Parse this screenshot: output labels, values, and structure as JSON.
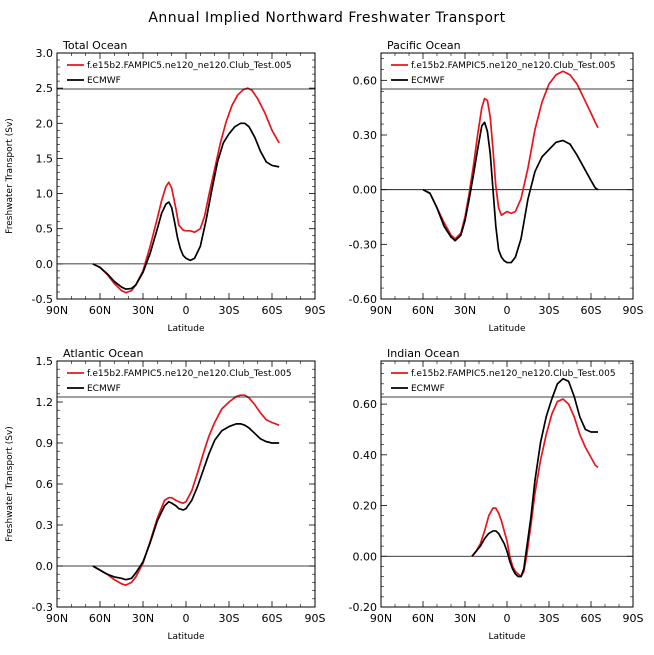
{
  "figure": {
    "title": "Annual Implied Northward Freshwater Transport"
  },
  "colors": {
    "model": "#e8141b",
    "obs": "#000000"
  },
  "chart_data": [
    {
      "type": "line",
      "title": "Total Ocean",
      "xlabel": "Latitude",
      "ylabel": "Freshwater Transport (Sv)",
      "xlim": [
        90,
        -90
      ],
      "ylim": [
        -0.5,
        3.0
      ],
      "xticks": [
        90,
        60,
        30,
        0,
        -30,
        -60,
        -90
      ],
      "xticklabels": [
        "90N",
        "60N",
        "30N",
        "0",
        "30S",
        "60S",
        "90S"
      ],
      "yticks": [
        -0.5,
        0,
        0.5,
        1,
        1.5,
        2,
        2.5,
        3
      ],
      "yticklabels": [
        "-0.5",
        "0.0",
        "0.5",
        "1.0",
        "1.5",
        "2.0",
        "2.5",
        "3.0"
      ],
      "zero_line": true,
      "legend": [
        "f.e15b2.FAMPIC5.ne120_ne120.Club_Test.005",
        "ECMWF"
      ],
      "series": [
        {
          "name": "f.e15b2.FAMPIC5.ne120_ne120.Club_Test.005",
          "color": "#e8141b",
          "x": [
            65,
            60,
            55,
            50,
            45,
            42,
            38,
            35,
            30,
            25,
            20,
            17,
            14,
            12,
            10,
            7,
            5,
            2,
            0,
            -3,
            -6,
            -10,
            -13,
            -16,
            -20,
            -24,
            -28,
            -32,
            -36,
            -40,
            -43,
            -46,
            -50,
            -55,
            -60,
            -65
          ],
          "y": [
            0,
            -0.05,
            -0.15,
            -0.28,
            -0.38,
            -0.41,
            -0.38,
            -0.3,
            -0.1,
            0.25,
            0.65,
            0.9,
            1.1,
            1.16,
            1.08,
            0.78,
            0.55,
            0.48,
            0.47,
            0.47,
            0.45,
            0.5,
            0.68,
            0.98,
            1.35,
            1.72,
            2.02,
            2.25,
            2.4,
            2.48,
            2.5,
            2.47,
            2.35,
            2.15,
            1.9,
            1.72
          ]
        },
        {
          "name": "ECMWF",
          "color": "#000000",
          "x": [
            65,
            60,
            55,
            50,
            45,
            42,
            38,
            35,
            30,
            25,
            20,
            17,
            14,
            12,
            10,
            8,
            6,
            4,
            2,
            0,
            -3,
            -6,
            -10,
            -14,
            -18,
            -22,
            -26,
            -30,
            -34,
            -38,
            -41,
            -44,
            -48,
            -52,
            -56,
            -60,
            -65
          ],
          "y": [
            0,
            -0.05,
            -0.14,
            -0.25,
            -0.33,
            -0.36,
            -0.35,
            -0.3,
            -0.12,
            0.15,
            0.5,
            0.72,
            0.85,
            0.88,
            0.8,
            0.6,
            0.38,
            0.22,
            0.12,
            0.08,
            0.05,
            0.08,
            0.25,
            0.62,
            1.05,
            1.45,
            1.72,
            1.85,
            1.95,
            2.0,
            2.0,
            1.95,
            1.8,
            1.6,
            1.45,
            1.4,
            1.38
          ]
        }
      ]
    },
    {
      "type": "line",
      "title": "Pacific Ocean",
      "xlabel": "Latitude",
      "ylabel": "",
      "xlim": [
        90,
        -90
      ],
      "ylim": [
        -0.6,
        0.75
      ],
      "xticks": [
        90,
        60,
        30,
        0,
        -30,
        -60,
        -90
      ],
      "xticklabels": [
        "90N",
        "60N",
        "30N",
        "0",
        "30S",
        "60S",
        "90S"
      ],
      "yticks": [
        -0.6,
        -0.3,
        0,
        0.3,
        0.6
      ],
      "yticklabels": [
        "-0.60",
        "-0.30",
        "0.00",
        "0.30",
        "0.60"
      ],
      "zero_line": true,
      "legend": [
        "f.e15b2.FAMPIC5.ne120_ne120.Club_Test.005",
        "ECMWF"
      ],
      "series": [
        {
          "name": "f.e15b2.FAMPIC5.ne120_ne120.Club_Test.005",
          "color": "#e8141b",
          "x": [
            60,
            55,
            50,
            45,
            40,
            37,
            33,
            30,
            27,
            24,
            21,
            18,
            16,
            14,
            12,
            10,
            8,
            6,
            4,
            2,
            0,
            -3,
            -6,
            -10,
            -15,
            -20,
            -25,
            -30,
            -35,
            -40,
            -45,
            -50,
            -55,
            -60,
            -63,
            -65
          ],
          "y": [
            0,
            -0.02,
            -0.1,
            -0.18,
            -0.25,
            -0.27,
            -0.24,
            -0.15,
            -0.02,
            0.13,
            0.3,
            0.45,
            0.5,
            0.49,
            0.4,
            0.22,
            0.02,
            -0.1,
            -0.14,
            -0.13,
            -0.12,
            -0.13,
            -0.12,
            -0.05,
            0.12,
            0.33,
            0.48,
            0.58,
            0.63,
            0.65,
            0.63,
            0.58,
            0.5,
            0.42,
            0.37,
            0.34
          ]
        },
        {
          "name": "ECMWF",
          "color": "#000000",
          "x": [
            60,
            55,
            50,
            45,
            40,
            37,
            33,
            30,
            27,
            24,
            21,
            18,
            16,
            14,
            12,
            10,
            8,
            6,
            4,
            2,
            0,
            -3,
            -6,
            -10,
            -15,
            -20,
            -25,
            -30,
            -35,
            -40,
            -45,
            -50,
            -55,
            -60,
            -63,
            -65
          ],
          "y": [
            0,
            -0.02,
            -0.1,
            -0.2,
            -0.26,
            -0.28,
            -0.25,
            -0.17,
            -0.05,
            0.08,
            0.22,
            0.35,
            0.37,
            0.32,
            0.2,
            0.0,
            -0.2,
            -0.33,
            -0.37,
            -0.39,
            -0.4,
            -0.4,
            -0.37,
            -0.27,
            -0.05,
            0.1,
            0.18,
            0.22,
            0.26,
            0.27,
            0.25,
            0.19,
            0.12,
            0.05,
            0.01,
            0.0
          ]
        }
      ]
    },
    {
      "type": "line",
      "title": "Atlantic Ocean",
      "xlabel": "Latitude",
      "ylabel": "Freshwater Transport (Sv)",
      "xlim": [
        90,
        -90
      ],
      "ylim": [
        -0.3,
        1.5
      ],
      "xticks": [
        90,
        60,
        30,
        0,
        -30,
        -60,
        -90
      ],
      "xticklabels": [
        "90N",
        "60N",
        "30N",
        "0",
        "30S",
        "60S",
        "90S"
      ],
      "yticks": [
        -0.3,
        0,
        0.3,
        0.6,
        0.9,
        1.2,
        1.5
      ],
      "yticklabels": [
        "-0.3",
        "0.0",
        "0.3",
        "0.6",
        "0.9",
        "1.2",
        "1.5"
      ],
      "zero_line": true,
      "legend": [
        "f.e15b2.FAMPIC5.ne120_ne120.Club_Test.005",
        "ECMWF"
      ],
      "series": [
        {
          "name": "f.e15b2.FAMPIC5.ne120_ne120.Club_Test.005",
          "color": "#e8141b",
          "x": [
            65,
            60,
            55,
            50,
            45,
            42,
            38,
            35,
            30,
            25,
            20,
            15,
            12,
            10,
            7,
            5,
            2,
            0,
            -4,
            -8,
            -12,
            -16,
            -20,
            -25,
            -30,
            -35,
            -38,
            -41,
            -44,
            -48,
            -52,
            -56,
            -60,
            -65
          ],
          "y": [
            0,
            -0.03,
            -0.06,
            -0.1,
            -0.13,
            -0.14,
            -0.12,
            -0.08,
            0.02,
            0.18,
            0.35,
            0.48,
            0.5,
            0.5,
            0.48,
            0.47,
            0.46,
            0.47,
            0.55,
            0.68,
            0.82,
            0.95,
            1.05,
            1.15,
            1.2,
            1.24,
            1.25,
            1.25,
            1.23,
            1.18,
            1.12,
            1.07,
            1.05,
            1.03
          ]
        },
        {
          "name": "ECMWF",
          "color": "#000000",
          "x": [
            65,
            60,
            55,
            50,
            45,
            42,
            38,
            35,
            30,
            25,
            20,
            15,
            12,
            10,
            7,
            5,
            2,
            0,
            -4,
            -8,
            -12,
            -16,
            -20,
            -25,
            -30,
            -35,
            -38,
            -41,
            -44,
            -48,
            -52,
            -56,
            -60,
            -65
          ],
          "y": [
            0,
            -0.03,
            -0.06,
            -0.08,
            -0.09,
            -0.1,
            -0.09,
            -0.05,
            0.03,
            0.17,
            0.33,
            0.44,
            0.47,
            0.46,
            0.44,
            0.42,
            0.41,
            0.42,
            0.48,
            0.58,
            0.7,
            0.82,
            0.92,
            0.99,
            1.02,
            1.04,
            1.04,
            1.03,
            1.01,
            0.97,
            0.93,
            0.91,
            0.9,
            0.9
          ]
        }
      ]
    },
    {
      "type": "line",
      "title": "Indian Ocean",
      "xlabel": "Latitude",
      "ylabel": "",
      "xlim": [
        90,
        -90
      ],
      "ylim": [
        -0.2,
        0.77
      ],
      "xticks": [
        90,
        60,
        30,
        0,
        -30,
        -60,
        -90
      ],
      "xticklabels": [
        "90N",
        "60N",
        "30N",
        "0",
        "30S",
        "60S",
        "90S"
      ],
      "yticks": [
        -0.2,
        0,
        0.2,
        0.4,
        0.6
      ],
      "yticklabels": [
        "-0.20",
        "0.00",
        "0.20",
        "0.40",
        "0.60"
      ],
      "zero_line": true,
      "legend": [
        "f.e15b2.FAMPIC5.ne120_ne120.Club_Test.005",
        "ECMWF"
      ],
      "series": [
        {
          "name": "f.e15b2.FAMPIC5.ne120_ne120.Club_Test.005",
          "color": "#e8141b",
          "x": [
            25,
            22,
            19,
            16,
            13,
            10,
            8,
            6,
            4,
            2,
            0,
            -2,
            -4,
            -6,
            -8,
            -10,
            -12,
            -14,
            -17,
            -20,
            -24,
            -28,
            -32,
            -36,
            -40,
            -44,
            -48,
            -52,
            -56,
            -60,
            -63,
            -65
          ],
          "y": [
            0,
            0.02,
            0.05,
            0.1,
            0.16,
            0.19,
            0.19,
            0.17,
            0.14,
            0.1,
            0.06,
            0.0,
            -0.04,
            -0.06,
            -0.07,
            -0.08,
            -0.06,
            0.0,
            0.12,
            0.25,
            0.38,
            0.48,
            0.56,
            0.61,
            0.62,
            0.6,
            0.55,
            0.48,
            0.43,
            0.39,
            0.36,
            0.35
          ]
        },
        {
          "name": "ECMWF",
          "color": "#000000",
          "x": [
            25,
            22,
            19,
            16,
            13,
            10,
            8,
            6,
            4,
            2,
            0,
            -2,
            -4,
            -6,
            -8,
            -10,
            -12,
            -14,
            -17,
            -20,
            -24,
            -28,
            -32,
            -36,
            -40,
            -44,
            -48,
            -52,
            -56,
            -60,
            -63,
            -65
          ],
          "y": [
            0,
            0.02,
            0.04,
            0.07,
            0.09,
            0.1,
            0.1,
            0.09,
            0.07,
            0.05,
            0.02,
            -0.02,
            -0.05,
            -0.07,
            -0.08,
            -0.08,
            -0.05,
            0.03,
            0.15,
            0.3,
            0.45,
            0.55,
            0.62,
            0.68,
            0.7,
            0.69,
            0.63,
            0.55,
            0.5,
            0.49,
            0.49,
            0.49
          ]
        }
      ]
    }
  ]
}
